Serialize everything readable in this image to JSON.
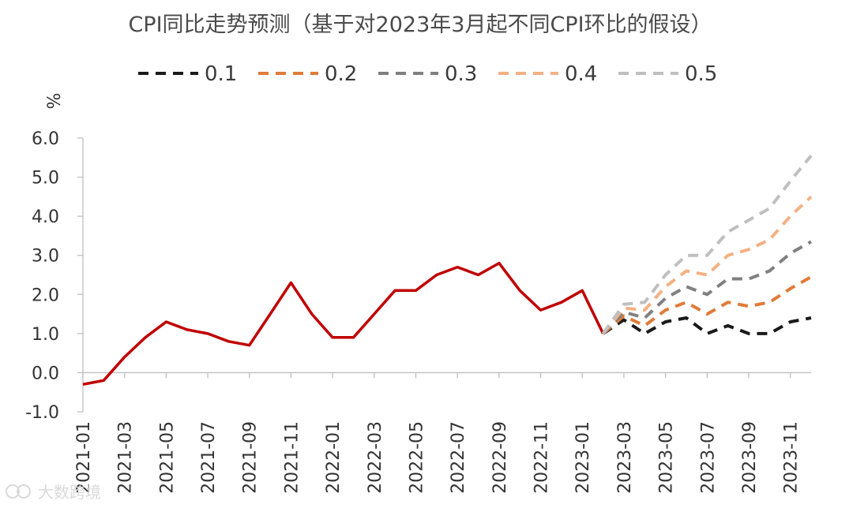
{
  "chart_data": {
    "type": "line",
    "title": "CPI同比走势预测（基于对2023年3月起不同CPI环比的假设）",
    "ylabel": "%",
    "ylim": [
      -1.0,
      6.0
    ],
    "yticks": [
      "6.0",
      "5.0",
      "4.0",
      "3.0",
      "2.0",
      "1.0",
      "0.0",
      "-1.0"
    ],
    "ytick_values": [
      6,
      5,
      4,
      3,
      2,
      1,
      0,
      -1
    ],
    "x_categories": [
      "2021-01",
      "2021-02",
      "2021-03",
      "2021-04",
      "2021-05",
      "2021-06",
      "2021-07",
      "2021-08",
      "2021-09",
      "2021-10",
      "2021-11",
      "2021-12",
      "2022-01",
      "2022-02",
      "2022-03",
      "2022-04",
      "2022-05",
      "2022-06",
      "2022-07",
      "2022-08",
      "2022-09",
      "2022-10",
      "2022-11",
      "2022-12",
      "2023-01",
      "2023-02",
      "2023-03",
      "2023-04",
      "2023-05",
      "2023-06",
      "2023-07",
      "2023-08",
      "2023-09",
      "2023-10",
      "2023-11",
      "2023-12"
    ],
    "xtick_labels": [
      "2021-01",
      "2021-03",
      "2021-05",
      "2021-07",
      "2021-09",
      "2021-11",
      "2022-01",
      "2022-03",
      "2022-05",
      "2022-07",
      "2022-09",
      "2022-11",
      "2023-01",
      "2023-03",
      "2023-05",
      "2023-07",
      "2023-09",
      "2023-11"
    ],
    "legend_position": "top",
    "grid": false,
    "series": [
      {
        "name": "",
        "style": "solid",
        "color": "#c00000",
        "start_index": 0,
        "values": [
          -0.3,
          -0.2,
          0.4,
          0.9,
          1.3,
          1.1,
          1.0,
          0.8,
          0.7,
          1.5,
          2.3,
          1.5,
          0.9,
          0.9,
          1.5,
          2.1,
          2.1,
          2.5,
          2.7,
          2.5,
          2.8,
          2.1,
          1.6,
          1.8,
          2.1,
          1.0
        ]
      },
      {
        "name": "0.1",
        "style": "dashed",
        "color": "#1a1a1a",
        "start_index": 25,
        "values": [
          1.0,
          1.35,
          1.0,
          1.3,
          1.4,
          1.0,
          1.2,
          1.0,
          1.0,
          1.3,
          1.4
        ]
      },
      {
        "name": "0.2",
        "style": "dashed",
        "color": "#e07b39",
        "start_index": 25,
        "values": [
          1.0,
          1.45,
          1.2,
          1.6,
          1.8,
          1.5,
          1.8,
          1.7,
          1.8,
          2.15,
          2.45
        ]
      },
      {
        "name": "0.3",
        "style": "dashed",
        "color": "#808080",
        "start_index": 25,
        "values": [
          1.0,
          1.55,
          1.4,
          1.9,
          2.2,
          2.0,
          2.4,
          2.4,
          2.6,
          3.05,
          3.35
        ]
      },
      {
        "name": "0.4",
        "style": "dashed",
        "color": "#f4b183",
        "start_index": 25,
        "values": [
          1.0,
          1.65,
          1.6,
          2.2,
          2.6,
          2.5,
          3.0,
          3.15,
          3.4,
          4.0,
          4.5
        ]
      },
      {
        "name": "0.5",
        "style": "dashed",
        "color": "#bfbfbf",
        "start_index": 25,
        "values": [
          1.0,
          1.75,
          1.8,
          2.5,
          3.0,
          3.0,
          3.6,
          3.9,
          4.2,
          4.9,
          5.55
        ]
      }
    ]
  },
  "watermark": {
    "text": "大数跨境"
  }
}
